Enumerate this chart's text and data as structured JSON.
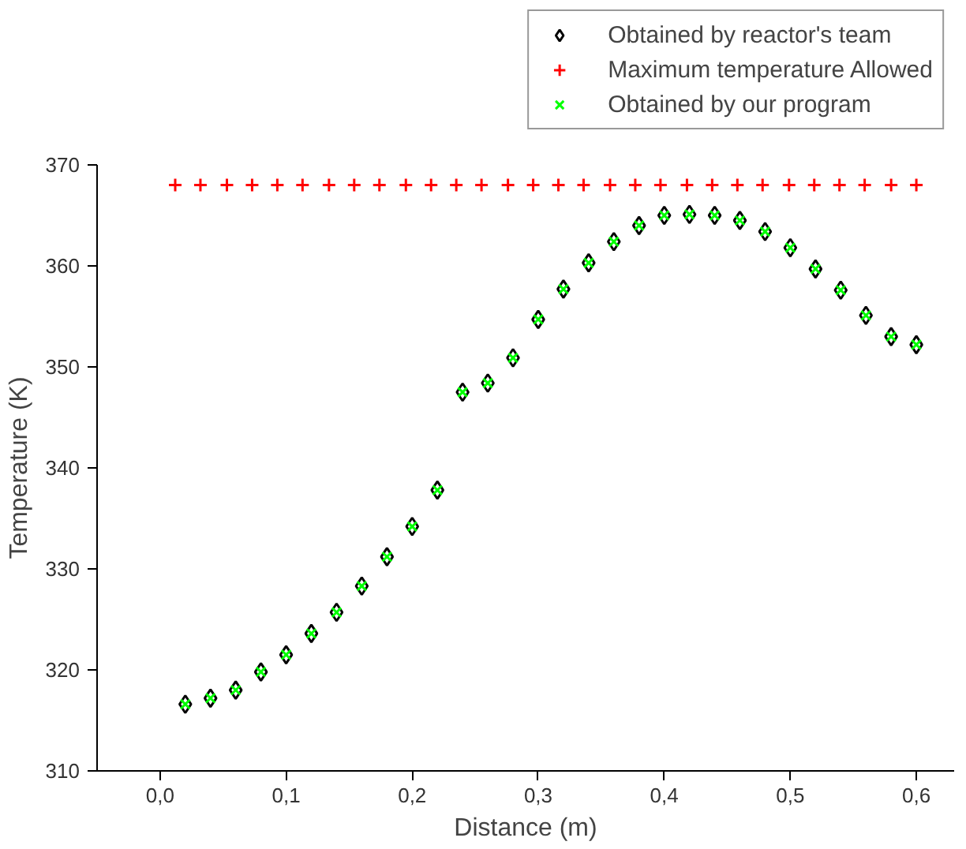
{
  "chart_data": {
    "type": "scatter",
    "xlabel": "Distance (m)",
    "ylabel": "Temperature (K)",
    "xlim": [
      -0.05,
      0.63
    ],
    "ylim": [
      310,
      370
    ],
    "xticks": [
      {
        "value": 0,
        "label": "0,0"
      },
      {
        "value": 0.1,
        "label": "0,1"
      },
      {
        "value": 0.2,
        "label": "0,2"
      },
      {
        "value": 0.3,
        "label": "0,3"
      },
      {
        "value": 0.4,
        "label": "0,4"
      },
      {
        "value": 0.5,
        "label": "0,5"
      },
      {
        "value": 0.6,
        "label": "0,6"
      }
    ],
    "yticks": [
      310,
      320,
      330,
      340,
      350,
      360,
      370
    ],
    "grid": false,
    "legend": "top right",
    "series": [
      {
        "name": "Obtained by reactor's team",
        "color": "#000000",
        "marker": "diamond",
        "x": [
          0.02,
          0.04,
          0.06,
          0.08,
          0.1,
          0.12,
          0.14,
          0.16,
          0.18,
          0.2,
          0.22,
          0.24,
          0.26,
          0.28,
          0.3,
          0.32,
          0.34,
          0.36,
          0.38,
          0.4,
          0.42,
          0.44,
          0.46,
          0.48,
          0.5,
          0.52,
          0.54,
          0.56,
          0.58,
          0.6
        ],
        "values": [
          316.6,
          317.2,
          318.0,
          319.8,
          321.5,
          323.6,
          325.7,
          328.3,
          331.2,
          334.2,
          337.8,
          347.5,
          348.4,
          350.9,
          354.7,
          357.7,
          360.3,
          362.4,
          364.0,
          365.0,
          365.1,
          365.0,
          364.5,
          363.4,
          361.8,
          359.7,
          357.6,
          355.1,
          353.0,
          352.2
        ]
      },
      {
        "name": "Maximum temperature Allowed",
        "color": "#ff0000",
        "marker": "cross",
        "x": [
          0.012,
          0.032,
          0.053,
          0.073,
          0.093,
          0.113,
          0.134,
          0.154,
          0.174,
          0.195,
          0.215,
          0.235,
          0.255,
          0.276,
          0.296,
          0.316,
          0.336,
          0.357,
          0.377,
          0.397,
          0.418,
          0.438,
          0.458,
          0.478,
          0.499,
          0.519,
          0.539,
          0.559,
          0.58,
          0.6
        ],
        "values": [
          368,
          368,
          368,
          368,
          368,
          368,
          368,
          368,
          368,
          368,
          368,
          368,
          368,
          368,
          368,
          368,
          368,
          368,
          368,
          368,
          368,
          368,
          368,
          368,
          368,
          368,
          368,
          368,
          368,
          368
        ]
      },
      {
        "name": "Obtained by our program",
        "color": "#00ff00",
        "marker": "x",
        "x": [
          0.02,
          0.04,
          0.06,
          0.08,
          0.1,
          0.12,
          0.14,
          0.16,
          0.18,
          0.2,
          0.22,
          0.24,
          0.26,
          0.28,
          0.3,
          0.32,
          0.34,
          0.36,
          0.38,
          0.4,
          0.42,
          0.44,
          0.46,
          0.48,
          0.5,
          0.52,
          0.54,
          0.56,
          0.58,
          0.6
        ],
        "values": [
          316.6,
          317.2,
          318.0,
          319.8,
          321.5,
          323.6,
          325.7,
          328.3,
          331.2,
          334.2,
          337.8,
          347.5,
          348.4,
          350.9,
          354.7,
          357.7,
          360.3,
          362.4,
          364.0,
          365.0,
          365.1,
          365.0,
          364.5,
          363.4,
          361.8,
          359.7,
          357.6,
          355.1,
          353.0,
          352.2
        ]
      }
    ]
  }
}
